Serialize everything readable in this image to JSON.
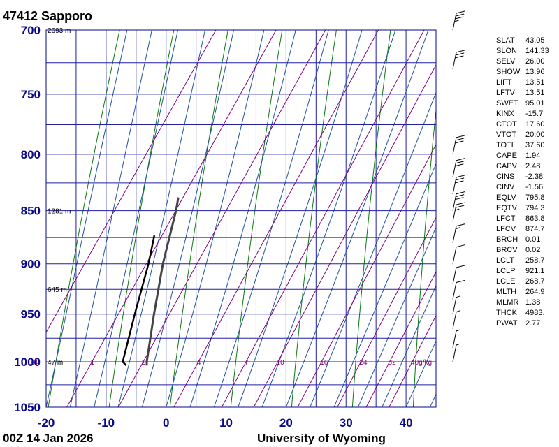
{
  "header": {
    "station": "47412  Sapporo"
  },
  "footer": {
    "time": "00Z 14 Jan 2026",
    "source": "University of Wyoming"
  },
  "colors": {
    "isotherm": "#2020a0",
    "dry_adiabat": "#0b7a0b",
    "moist_adiabat": "#2050a0",
    "mixing_ratio": "#800080",
    "temperature": "#000000",
    "dewpoint": "#444444"
  },
  "chart_data": {
    "type": "line",
    "title": "47412  Sapporo",
    "xlabel": "",
    "ylabel": "",
    "xlim": [
      -20,
      45
    ],
    "ylim": [
      1050,
      700
    ],
    "y_scale": "log-pressure",
    "x_ticks": [
      -20,
      -10,
      0,
      10,
      20,
      30,
      40
    ],
    "y_ticks": [
      700,
      750,
      800,
      850,
      900,
      950,
      1000,
      1050
    ],
    "height_labels": [
      {
        "p": 700,
        "text": "2693 m"
      },
      {
        "p": 850,
        "text": "1281 m"
      },
      {
        "p": 925,
        "text": "645 m"
      },
      {
        "p": 1000,
        "text": "47 m"
      }
    ],
    "mixing_ratio_labels": [
      {
        "w": 0.4,
        "text": "0.4"
      },
      {
        "w": 1,
        "text": "1"
      },
      {
        "w": 2,
        "text": "2"
      },
      {
        "w": 4,
        "text": "4"
      },
      {
        "w": 7,
        "text": "7"
      },
      {
        "w": 10,
        "text": "10"
      },
      {
        "w": 16,
        "text": "16"
      },
      {
        "w": 24,
        "text": "24"
      },
      {
        "w": 32,
        "text": "32"
      },
      {
        "w": 40,
        "text": "40g/kg"
      }
    ],
    "series": [
      {
        "role": "temperature",
        "points": [
          [
            1004,
            -7.6
          ],
          [
            1000,
            -8.0
          ],
          [
            950,
            -11.8
          ],
          [
            900,
            -15.6
          ],
          [
            850,
            -19.0
          ],
          [
            838,
            -20.0
          ]
        ]
      },
      {
        "role": "dewpoint",
        "points": [
          [
            1004,
            -11.0
          ],
          [
            1000,
            -12.0
          ],
          [
            950,
            -15.0
          ],
          [
            900,
            -18.0
          ],
          [
            873,
            -20.0
          ]
        ]
      }
    ],
    "wind_barbs": [
      {
        "p": 700,
        "kt": 35
      },
      {
        "p": 730,
        "kt": 30
      },
      {
        "p": 800,
        "kt": 30
      },
      {
        "p": 820,
        "kt": 30
      },
      {
        "p": 835,
        "kt": 30
      },
      {
        "p": 850,
        "kt": 30
      },
      {
        "p": 860,
        "kt": 25
      },
      {
        "p": 880,
        "kt": 15
      },
      {
        "p": 900,
        "kt": 10
      },
      {
        "p": 920,
        "kt": 10
      },
      {
        "p": 935,
        "kt": 10
      },
      {
        "p": 950,
        "kt": 5
      },
      {
        "p": 965,
        "kt": 5
      },
      {
        "p": 985,
        "kt": 5
      },
      {
        "p": 1000,
        "kt": 5
      }
    ],
    "indices": [
      {
        "name": "SLAT",
        "value": "43.05"
      },
      {
        "name": "SLON",
        "value": "141.33"
      },
      {
        "name": "SELV",
        "value": "26.00"
      },
      {
        "name": "SHOW",
        "value": "13.96"
      },
      {
        "name": "LIFT",
        "value": "13.51"
      },
      {
        "name": "LFTV",
        "value": "13.51"
      },
      {
        "name": "SWET",
        "value": "95.01"
      },
      {
        "name": "KINX",
        "value": "-15.7"
      },
      {
        "name": "CTOT",
        "value": "17.60"
      },
      {
        "name": "VTOT",
        "value": "20.00"
      },
      {
        "name": "TOTL",
        "value": "37.60"
      },
      {
        "name": "CAPE",
        "value": "1.94"
      },
      {
        "name": "CAPV",
        "value": "2.48"
      },
      {
        "name": "CINS",
        "value": "-2.38"
      },
      {
        "name": "CINV",
        "value": "-1.56"
      },
      {
        "name": "EQLV",
        "value": "795.8"
      },
      {
        "name": "EQTV",
        "value": "794.3"
      },
      {
        "name": "LFCT",
        "value": "863.8"
      },
      {
        "name": "LFCV",
        "value": "874.7"
      },
      {
        "name": "BRCH",
        "value": "0.01"
      },
      {
        "name": "BRCV",
        "value": "0.02"
      },
      {
        "name": "LCLT",
        "value": "258.7"
      },
      {
        "name": "LCLP",
        "value": "921.1"
      },
      {
        "name": "LCLE",
        "value": "268.7"
      },
      {
        "name": "MLTH",
        "value": "264.9"
      },
      {
        "name": "MLMR",
        "value": "1.38"
      },
      {
        "name": "THCK",
        "value": "4983."
      },
      {
        "name": "PWAT",
        "value": "2.77"
      }
    ]
  }
}
